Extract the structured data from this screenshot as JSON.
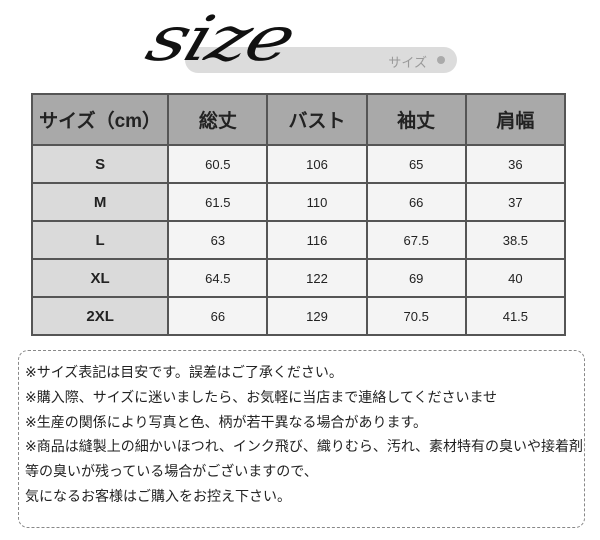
{
  "header": {
    "logo_text": "size",
    "subtitle": "サイズ"
  },
  "table": {
    "columns": [
      "サイズ（cm）",
      "総丈",
      "バスト",
      "袖丈",
      "肩幅"
    ],
    "rows": [
      [
        "S",
        "60.5",
        "106",
        "65",
        "36"
      ],
      [
        "M",
        "61.5",
        "110",
        "66",
        "37"
      ],
      [
        "L",
        "63",
        "116",
        "67.5",
        "38.5"
      ],
      [
        "XL",
        "64.5",
        "122",
        "69",
        "40"
      ],
      [
        "2XL",
        "66",
        "129",
        "70.5",
        "41.5"
      ]
    ]
  },
  "notes": [
    "※サイズ表記は目安です。誤差はご了承ください。",
    "※購入際、サイズに迷いましたら、お気軽に当店まで連絡してくださいませ",
    "※生産の関係により写真と色、柄が若干異なる場合があります。",
    "※商品は縫製上の細かいほつれ、インク飛び、織りむら、汚れ、素材特有の臭いや接着剤",
    "等の臭いが残っている場合がございますので、",
    "気になるお客様はご購入をお控え下さい。"
  ]
}
